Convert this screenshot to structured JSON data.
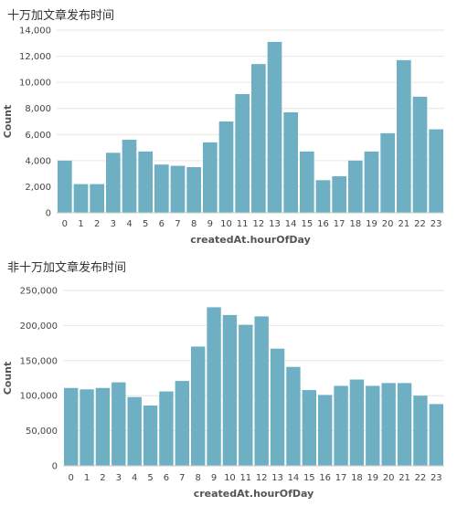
{
  "charts": [
    {
      "title": "十万加文章发布时间",
      "chart_data": {
        "type": "bar",
        "title": "十万加文章发布时间",
        "xlabel": "createdAt.hourOfDay",
        "ylabel": "Count",
        "categories": [
          "0",
          "1",
          "2",
          "3",
          "4",
          "5",
          "6",
          "7",
          "8",
          "9",
          "10",
          "11",
          "12",
          "13",
          "14",
          "15",
          "16",
          "17",
          "18",
          "19",
          "20",
          "21",
          "22",
          "23"
        ],
        "values": [
          4000,
          2200,
          2200,
          4600,
          5600,
          4700,
          3700,
          3600,
          3500,
          5400,
          7000,
          9100,
          11400,
          13100,
          7700,
          4700,
          2500,
          2800,
          4000,
          4700,
          6100,
          11700,
          8900,
          6400
        ],
        "ylim": [
          0,
          14000
        ],
        "yticks": [
          0,
          2000,
          4000,
          6000,
          8000,
          10000,
          12000,
          14000
        ],
        "ytick_labels": [
          "0",
          "2,000",
          "4,000",
          "6,000",
          "8,000",
          "10,000",
          "12,000",
          "14,000"
        ],
        "bar_color": "#6fafc4",
        "grid": true
      }
    },
    {
      "title": "非十万加文章发布时间",
      "chart_data": {
        "type": "bar",
        "title": "非十万加文章发布时间",
        "xlabel": "createdAt.hourOfDay",
        "ylabel": "Count",
        "categories": [
          "0",
          "1",
          "2",
          "3",
          "4",
          "5",
          "6",
          "7",
          "8",
          "9",
          "10",
          "11",
          "12",
          "13",
          "14",
          "15",
          "16",
          "17",
          "18",
          "19",
          "20",
          "21",
          "22",
          "23"
        ],
        "values": [
          111000,
          109000,
          111000,
          119000,
          98000,
          86000,
          106000,
          121000,
          170000,
          226000,
          215000,
          201000,
          213000,
          167000,
          141000,
          108000,
          101000,
          114000,
          123000,
          114000,
          118000,
          118000,
          100000,
          88000
        ],
        "ylim": [
          0,
          250000
        ],
        "yticks": [
          0,
          50000,
          100000,
          150000,
          200000,
          250000
        ],
        "ytick_labels": [
          "0",
          "50,000",
          "100,000",
          "150,000",
          "200,000",
          "250,000"
        ],
        "bar_color": "#6fafc4",
        "grid": true
      }
    }
  ]
}
